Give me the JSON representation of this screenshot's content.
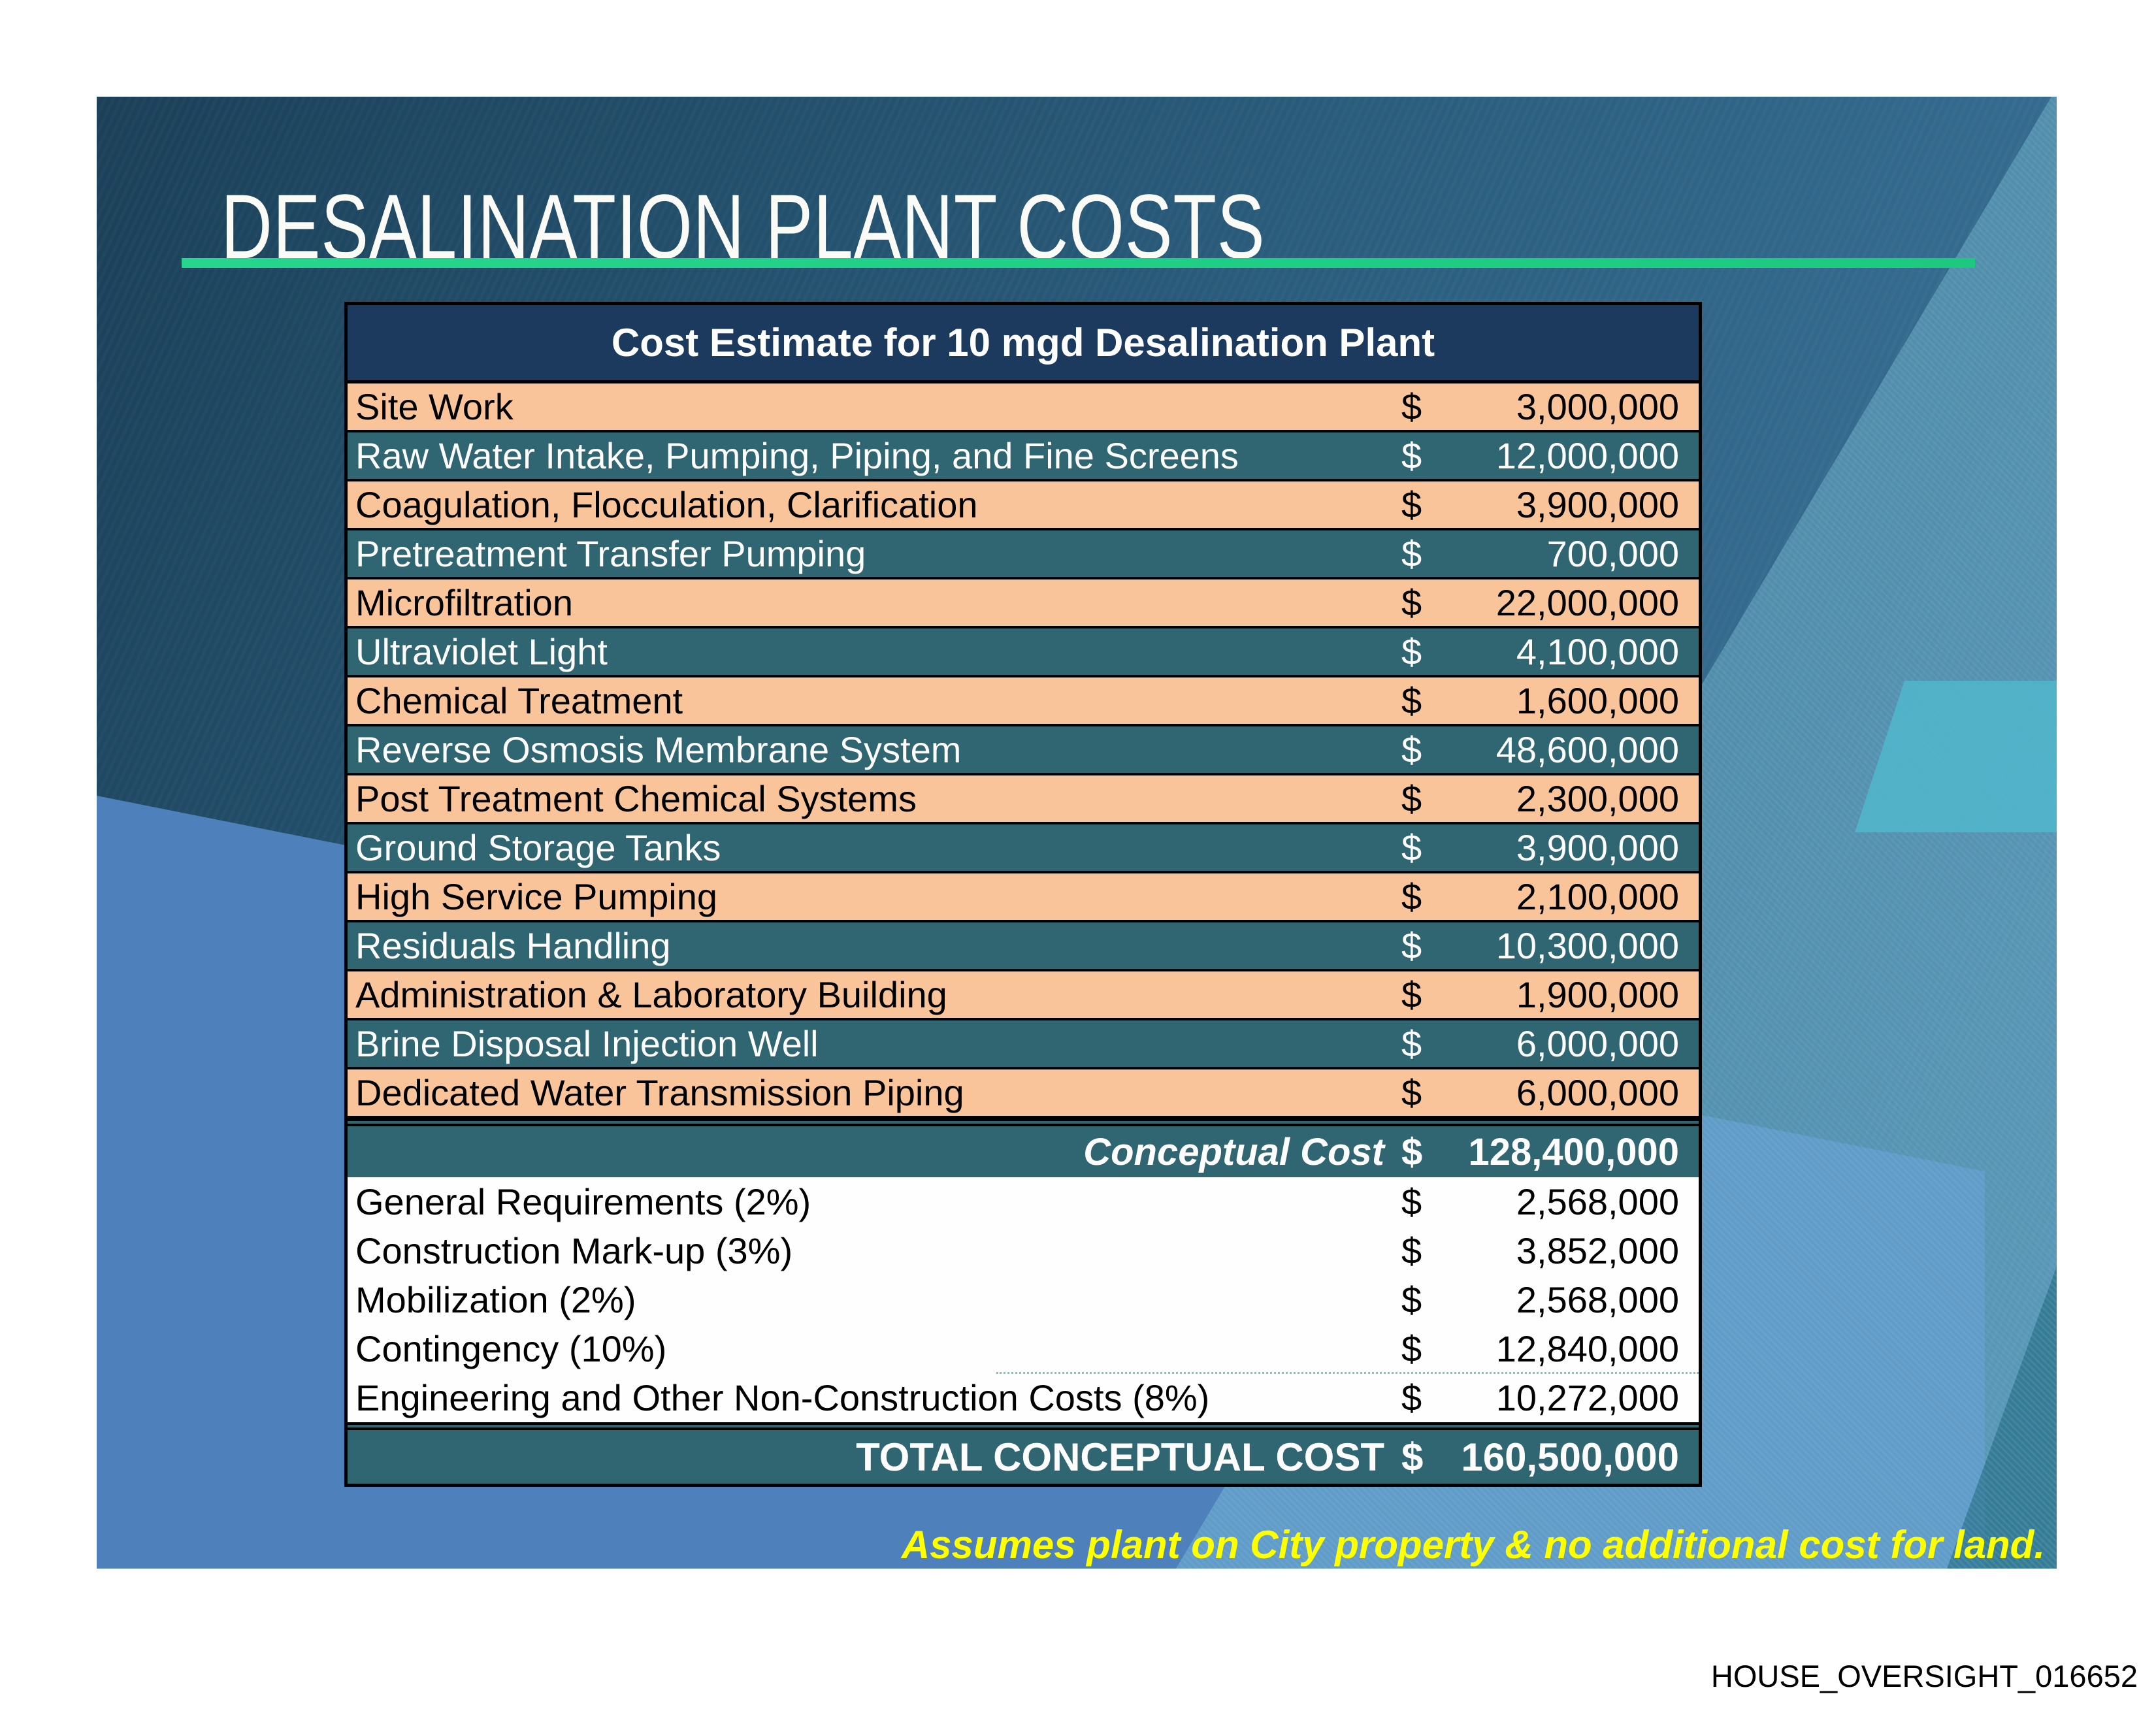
{
  "slide": {
    "title": "DESALINATION PLANT COSTS",
    "note": "Assumes plant on City property & no additional cost for land.",
    "table": {
      "header": "Cost Estimate for 10 mgd Desalination Plant",
      "currency_symbol": "$",
      "rows": [
        {
          "label": "Site Work",
          "amount": "3,000,000"
        },
        {
          "label": "Raw Water Intake, Pumping, Piping, and Fine Screens",
          "amount": "12,000,000"
        },
        {
          "label": "Coagulation, Flocculation, Clarification",
          "amount": "3,900,000"
        },
        {
          "label": "Pretreatment Transfer Pumping",
          "amount": "700,000"
        },
        {
          "label": "Microfiltration",
          "amount": "22,000,000"
        },
        {
          "label": "Ultraviolet Light",
          "amount": "4,100,000"
        },
        {
          "label": "Chemical Treatment",
          "amount": "1,600,000"
        },
        {
          "label": "Reverse Osmosis Membrane System",
          "amount": "48,600,000"
        },
        {
          "label": "Post Treatment Chemical Systems",
          "amount": "2,300,000"
        },
        {
          "label": "Ground Storage Tanks",
          "amount": "3,900,000"
        },
        {
          "label": "High Service Pumping",
          "amount": "2,100,000"
        },
        {
          "label": "Residuals Handling",
          "amount": "10,300,000"
        },
        {
          "label": "Administration & Laboratory Building",
          "amount": "1,900,000"
        },
        {
          "label": "Brine Disposal Injection Well",
          "amount": "6,000,000"
        },
        {
          "label": "Dedicated Water Transmission Piping",
          "amount": "6,000,000"
        }
      ],
      "conceptual": {
        "label": "Conceptual Cost",
        "amount": "128,400,000"
      },
      "addons": [
        {
          "label": "General Requirements (2%)",
          "amount": "2,568,000"
        },
        {
          "label": "Construction Mark-up (3%)",
          "amount": "3,852,000"
        },
        {
          "label": "Mobilization (2%)",
          "amount": "2,568,000"
        },
        {
          "label": "Contingency (10%)",
          "amount": "12,840,000"
        },
        {
          "label": "Engineering and Other Non-Construction Costs (8%)",
          "amount": "10,272,000"
        }
      ],
      "total": {
        "label": "TOTAL CONCEPTUAL COST",
        "amount": "160,500,000"
      }
    },
    "colors": {
      "header_navy": "#1B3A5E",
      "row_orange": "#F9C499",
      "row_teal": "#2F6672",
      "underline_green": "#1FCE84",
      "note_yellow": "#FFFF00",
      "flat_blue": "#4E81BB"
    }
  },
  "footer": {
    "watermark": "HOUSE_OVERSIGHT_016652"
  }
}
